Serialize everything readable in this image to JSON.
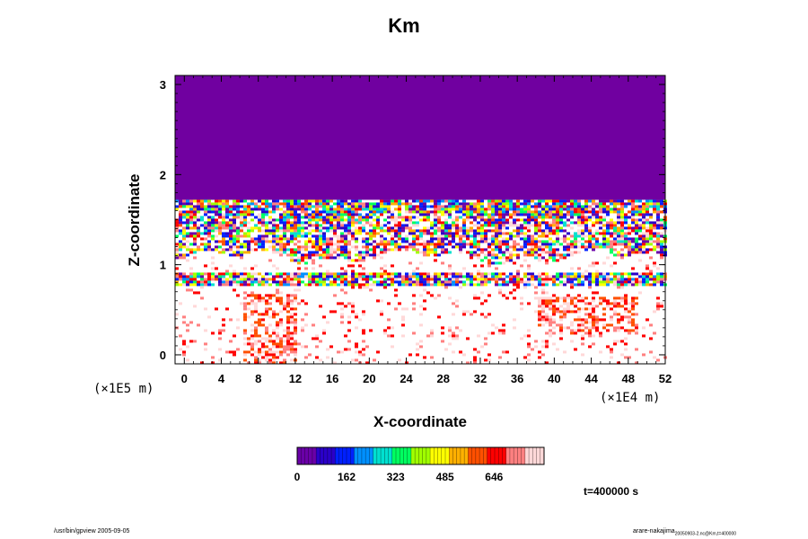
{
  "chart_data": {
    "type": "heatmap",
    "title": "Km",
    "xlabel": "X-coordinate",
    "ylabel": "Z-coordinate",
    "x_scale_label": "(×1E4 m)",
    "y_scale_label": "(×1E5 m)",
    "xlim": [
      -1,
      52
    ],
    "ylim": [
      -0.1,
      3.1
    ],
    "x_ticks": [
      "0",
      "4",
      "8",
      "12",
      "16",
      "20",
      "24",
      "28",
      "32",
      "36",
      "40",
      "44",
      "48",
      "52"
    ],
    "y_ticks": [
      "0",
      "1",
      "2",
      "3"
    ],
    "colorbar_ticks": [
      "0",
      "162",
      "323",
      "485",
      "646"
    ],
    "colorbar_range": [
      0,
      810
    ],
    "annotation": "t=400000 s",
    "colormap": [
      "#6a00a8",
      "#2a00c8",
      "#0020ff",
      "#0090ff",
      "#00e0d0",
      "#00ff60",
      "#a0ff00",
      "#ffff00",
      "#ffb000",
      "#ff5000",
      "#ff0000",
      "#ff8080",
      "#ffd8d8"
    ],
    "fill_color": "#7000a0",
    "field": [
      {
        "z_range": [
          1.72,
          3.1
        ],
        "value": "0 (uniform)"
      },
      {
        "z_range": [
          1.1,
          1.72
        ],
        "value": "0–810 mixed turbulent layer"
      },
      {
        "z_range": [
          0.8,
          1.0
        ],
        "value": "0–810 turbulent layer"
      },
      {
        "z_range": [
          0.0,
          0.8
        ],
        "value": "mostly 646–810 with scattered patches"
      }
    ]
  },
  "footer": {
    "left": "/usr/bin/gpview 2005-09-05",
    "right": "arare-nakajima",
    "right_sub": "20050903-2.nc@Km,t=400000"
  }
}
